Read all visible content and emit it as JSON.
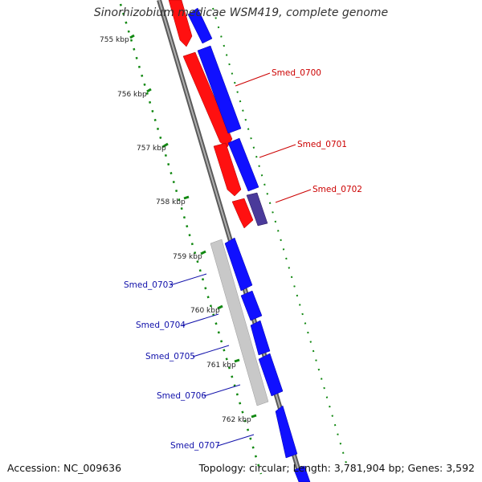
{
  "title": "Sinorhizobium medicae WSM419, complete genome",
  "footer": {
    "accession": "Accession: NC_009636",
    "summary": "Topology: circular; Length: 3,781,904 bp; Genes: 3,592"
  },
  "colors": {
    "background": "#ffffff",
    "reverse_strand": "#ff1010",
    "forward_strand": "#1010ff",
    "pseudogene": "#c8c8c8",
    "highlight": "#4a3a9a",
    "backbone": "#808080",
    "tick_dots": "#118811",
    "label_red": "#cc0000",
    "label_blue": "#1010aa"
  },
  "ruler_ticks": [
    "755 kbp",
    "756 kbp",
    "757 kbp",
    "758 kbp",
    "759 kbp",
    "760 kbp",
    "761 kbp",
    "762 kbp"
  ],
  "gene_labels": [
    {
      "name": "Smed_0700",
      "strand": "forward",
      "color": "red"
    },
    {
      "name": "Smed_0701",
      "strand": "forward",
      "color": "red"
    },
    {
      "name": "Smed_0702",
      "strand": "forward",
      "color": "red"
    },
    {
      "name": "Smed_0703",
      "strand": "reverse",
      "color": "blue"
    },
    {
      "name": "Smed_0704",
      "strand": "reverse",
      "color": "blue"
    },
    {
      "name": "Smed_0705",
      "strand": "reverse",
      "color": "blue"
    },
    {
      "name": "Smed_0706",
      "strand": "reverse",
      "color": "blue"
    },
    {
      "name": "Smed_0707",
      "strand": "reverse",
      "color": "blue"
    }
  ]
}
